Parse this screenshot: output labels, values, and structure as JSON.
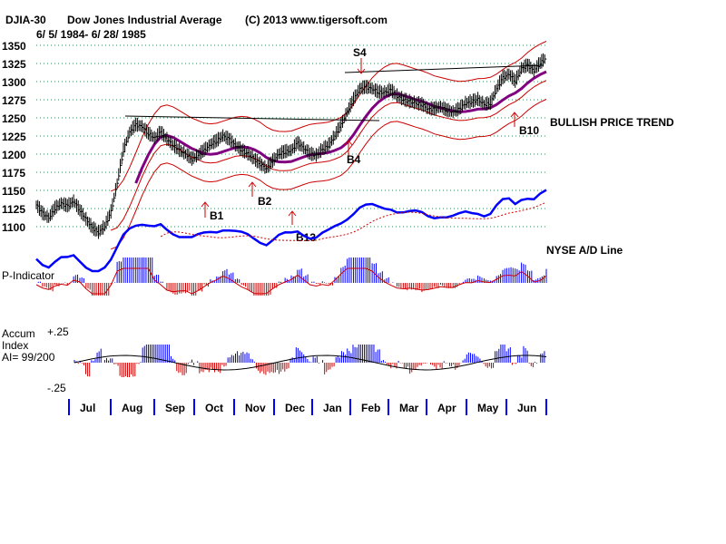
{
  "chart_data": {
    "type": "line",
    "symbol": "DJIA-30",
    "name": "Dow Jones Industrial Average",
    "copyright": "(C) 2013 www.tigersoft.com",
    "date_range": "6/ 5/ 1984- 6/ 28/ 1985",
    "ylim": [
      1075,
      1360
    ],
    "yticks": [
      "1350",
      "1325",
      "1300",
      "1275",
      "1250",
      "1225",
      "1200",
      "1175",
      "1150",
      "1125",
      "1100"
    ],
    "months": [
      "Jul",
      "Aug",
      "Sep",
      "Oct",
      "Nov",
      "Dec",
      "Jan",
      "Feb",
      "Mar",
      "Apr",
      "May",
      "Jun"
    ],
    "price_close": [
      1130,
      1118,
      1112,
      1125,
      1132,
      1128,
      1135,
      1122,
      1110,
      1098,
      1092,
      1100,
      1120,
      1160,
      1205,
      1230,
      1240,
      1238,
      1228,
      1222,
      1230,
      1220,
      1212,
      1205,
      1200,
      1193,
      1198,
      1205,
      1213,
      1218,
      1225,
      1220,
      1212,
      1205,
      1200,
      1193,
      1186,
      1180,
      1190,
      1200,
      1203,
      1205,
      1215,
      1208,
      1200,
      1198,
      1206,
      1212,
      1225,
      1240,
      1258,
      1275,
      1290,
      1292,
      1290,
      1285,
      1285,
      1288,
      1280,
      1275,
      1272,
      1270,
      1268,
      1262,
      1262,
      1265,
      1260,
      1258,
      1262,
      1270,
      1272,
      1275,
      1268,
      1270,
      1290,
      1305,
      1310,
      1300,
      1318,
      1322,
      1315,
      1325,
      1333
    ],
    "labels": {
      "signals": [
        "S4",
        "B1",
        "B2",
        "B4",
        "B13",
        "B10"
      ],
      "trend": "BULLISH PRICE TREND",
      "ad_line": "NYSE A/D Line",
      "p_indicator": "P-Indicator",
      "accum_title": "Accum",
      "accum_index": "Index",
      "ai_value": "AI= 99/200",
      "accum_top": "+.25",
      "accum_bottom": "-.25"
    },
    "series": [
      {
        "name": "DJIA-30 close",
        "color": "#000000"
      },
      {
        "name": "21-day moving average",
        "color": "#800080"
      },
      {
        "name": "upper band",
        "color": "#cc0000"
      },
      {
        "name": "lower band",
        "color": "#cc0000"
      },
      {
        "name": "NYSE A/D Line",
        "color": "#0000ff"
      },
      {
        "name": "P-Indicator",
        "color": "#0000ff"
      },
      {
        "name": "Accumulation Index",
        "color": "#0000ff"
      }
    ]
  }
}
